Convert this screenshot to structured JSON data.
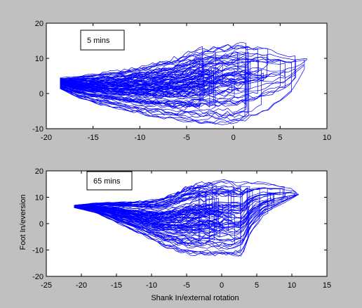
{
  "figure": {
    "background": "#c0c0c0",
    "axes_background": "#ffffff",
    "series_color": "#0000ff",
    "ylabel": "Foot In/eversion",
    "xlabel": "Shank In/external rotation"
  },
  "chart_data": [
    {
      "type": "line",
      "annotation": "5 mins",
      "xlim": [
        -20,
        10
      ],
      "ylim": [
        -10,
        20
      ],
      "xticks": [
        -20,
        -15,
        -10,
        -5,
        0,
        5,
        10
      ],
      "yticks": [
        -10,
        0,
        10,
        20
      ],
      "grid": false,
      "series": [
        {
          "color": "#0000ff",
          "loop_center": [
            -18.5,
            3.5
          ],
          "envelope_upper": [
            [
              -19,
              4.5
            ],
            [
              -17,
              5.5
            ],
            [
              -15,
              6.5
            ],
            [
              -12,
              8
            ],
            [
              -9,
              10
            ],
            [
              -6,
              12.5
            ],
            [
              -4,
              15
            ],
            [
              -2,
              16.5
            ],
            [
              0,
              17.5
            ],
            [
              2,
              17
            ],
            [
              4,
              15.5
            ],
            [
              6,
              13
            ],
            [
              7.5,
              11
            ],
            [
              8,
              10
            ]
          ],
          "envelope_lower": [
            [
              -19,
              2
            ],
            [
              -17,
              -1
            ],
            [
              -15,
              -3
            ],
            [
              -12,
              -5
            ],
            [
              -9,
              -7
            ],
            [
              -6,
              -8.5
            ],
            [
              -3,
              -9.5
            ],
            [
              0,
              -9.5
            ],
            [
              2,
              -8
            ],
            [
              4,
              -5
            ],
            [
              6,
              -1
            ],
            [
              7.5,
              6
            ],
            [
              8,
              10
            ]
          ],
          "cycles": 55
        }
      ]
    },
    {
      "type": "line",
      "annotation": "65 mins",
      "xlim": [
        -25,
        15
      ],
      "ylim": [
        -20,
        20
      ],
      "xticks": [
        -25,
        -20,
        -15,
        -10,
        -5,
        0,
        5,
        10,
        15
      ],
      "yticks": [
        -20,
        -10,
        0,
        10,
        20
      ],
      "grid": false,
      "series": [
        {
          "color": "#0000ff",
          "loop_center": [
            -21,
            6.5
          ],
          "envelope_upper": [
            [
              -21,
              7
            ],
            [
              -18,
              8
            ],
            [
              -15,
              8.5
            ],
            [
              -12,
              9
            ],
            [
              -9,
              10
            ],
            [
              -7,
              12
            ],
            [
              -5,
              15
            ],
            [
              -3,
              16.5
            ],
            [
              0,
              17.5
            ],
            [
              3,
              17
            ],
            [
              6,
              16
            ],
            [
              8,
              15
            ],
            [
              10,
              13.5
            ],
            [
              11,
              11
            ]
          ],
          "envelope_lower": [
            [
              -21,
              6
            ],
            [
              -18,
              4
            ],
            [
              -15,
              0
            ],
            [
              -12,
              -4
            ],
            [
              -10,
              -7
            ],
            [
              -8,
              -10
            ],
            [
              -5,
              -13
            ],
            [
              -2,
              -13.5
            ],
            [
              1,
              -14
            ],
            [
              3,
              -13.5
            ],
            [
              4,
              -5
            ],
            [
              6,
              2
            ],
            [
              9,
              7
            ],
            [
              11,
              11
            ]
          ],
          "cycles": 55
        }
      ]
    }
  ]
}
